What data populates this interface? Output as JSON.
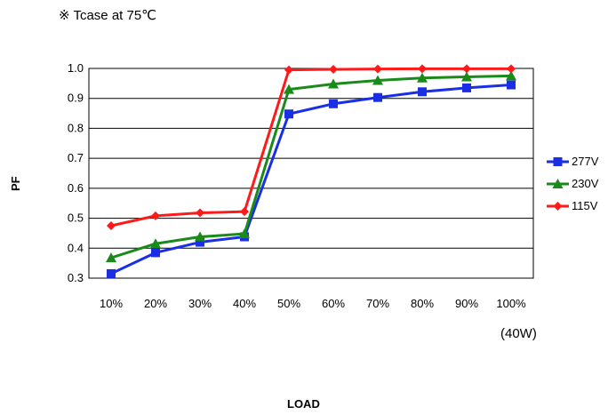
{
  "note": "※ Tcase at 75℃",
  "chart_data": {
    "type": "line",
    "categories": [
      "10%",
      "20%",
      "30%",
      "40%",
      "50%",
      "60%",
      "70%",
      "80%",
      "90%",
      "100%"
    ],
    "x_unit_note": "(40W)",
    "xlabel": "LOAD",
    "ylabel": "PF",
    "ylim": [
      0.3,
      1.0
    ],
    "yticks": [
      "1.0",
      "0.9",
      "0.8",
      "0.7",
      "0.6",
      "0.5",
      "0.4",
      "0.3"
    ],
    "grid": "horizontal",
    "legend_position": "right",
    "series": [
      {
        "name": "277V",
        "color": "#1a2ee6",
        "marker": "square",
        "values": [
          0.315,
          0.385,
          0.42,
          0.438,
          0.848,
          0.882,
          0.903,
          0.922,
          0.935,
          0.945
        ]
      },
      {
        "name": "230V",
        "color": "#1a8a1a",
        "marker": "triangle",
        "values": [
          0.368,
          0.415,
          0.438,
          0.448,
          0.93,
          0.948,
          0.96,
          0.968,
          0.972,
          0.975
        ]
      },
      {
        "name": "115V",
        "color": "#ff1a1a",
        "marker": "diamond",
        "values": [
          0.475,
          0.508,
          0.518,
          0.522,
          0.995,
          0.997,
          0.998,
          0.999,
          0.999,
          0.999
        ]
      }
    ]
  }
}
